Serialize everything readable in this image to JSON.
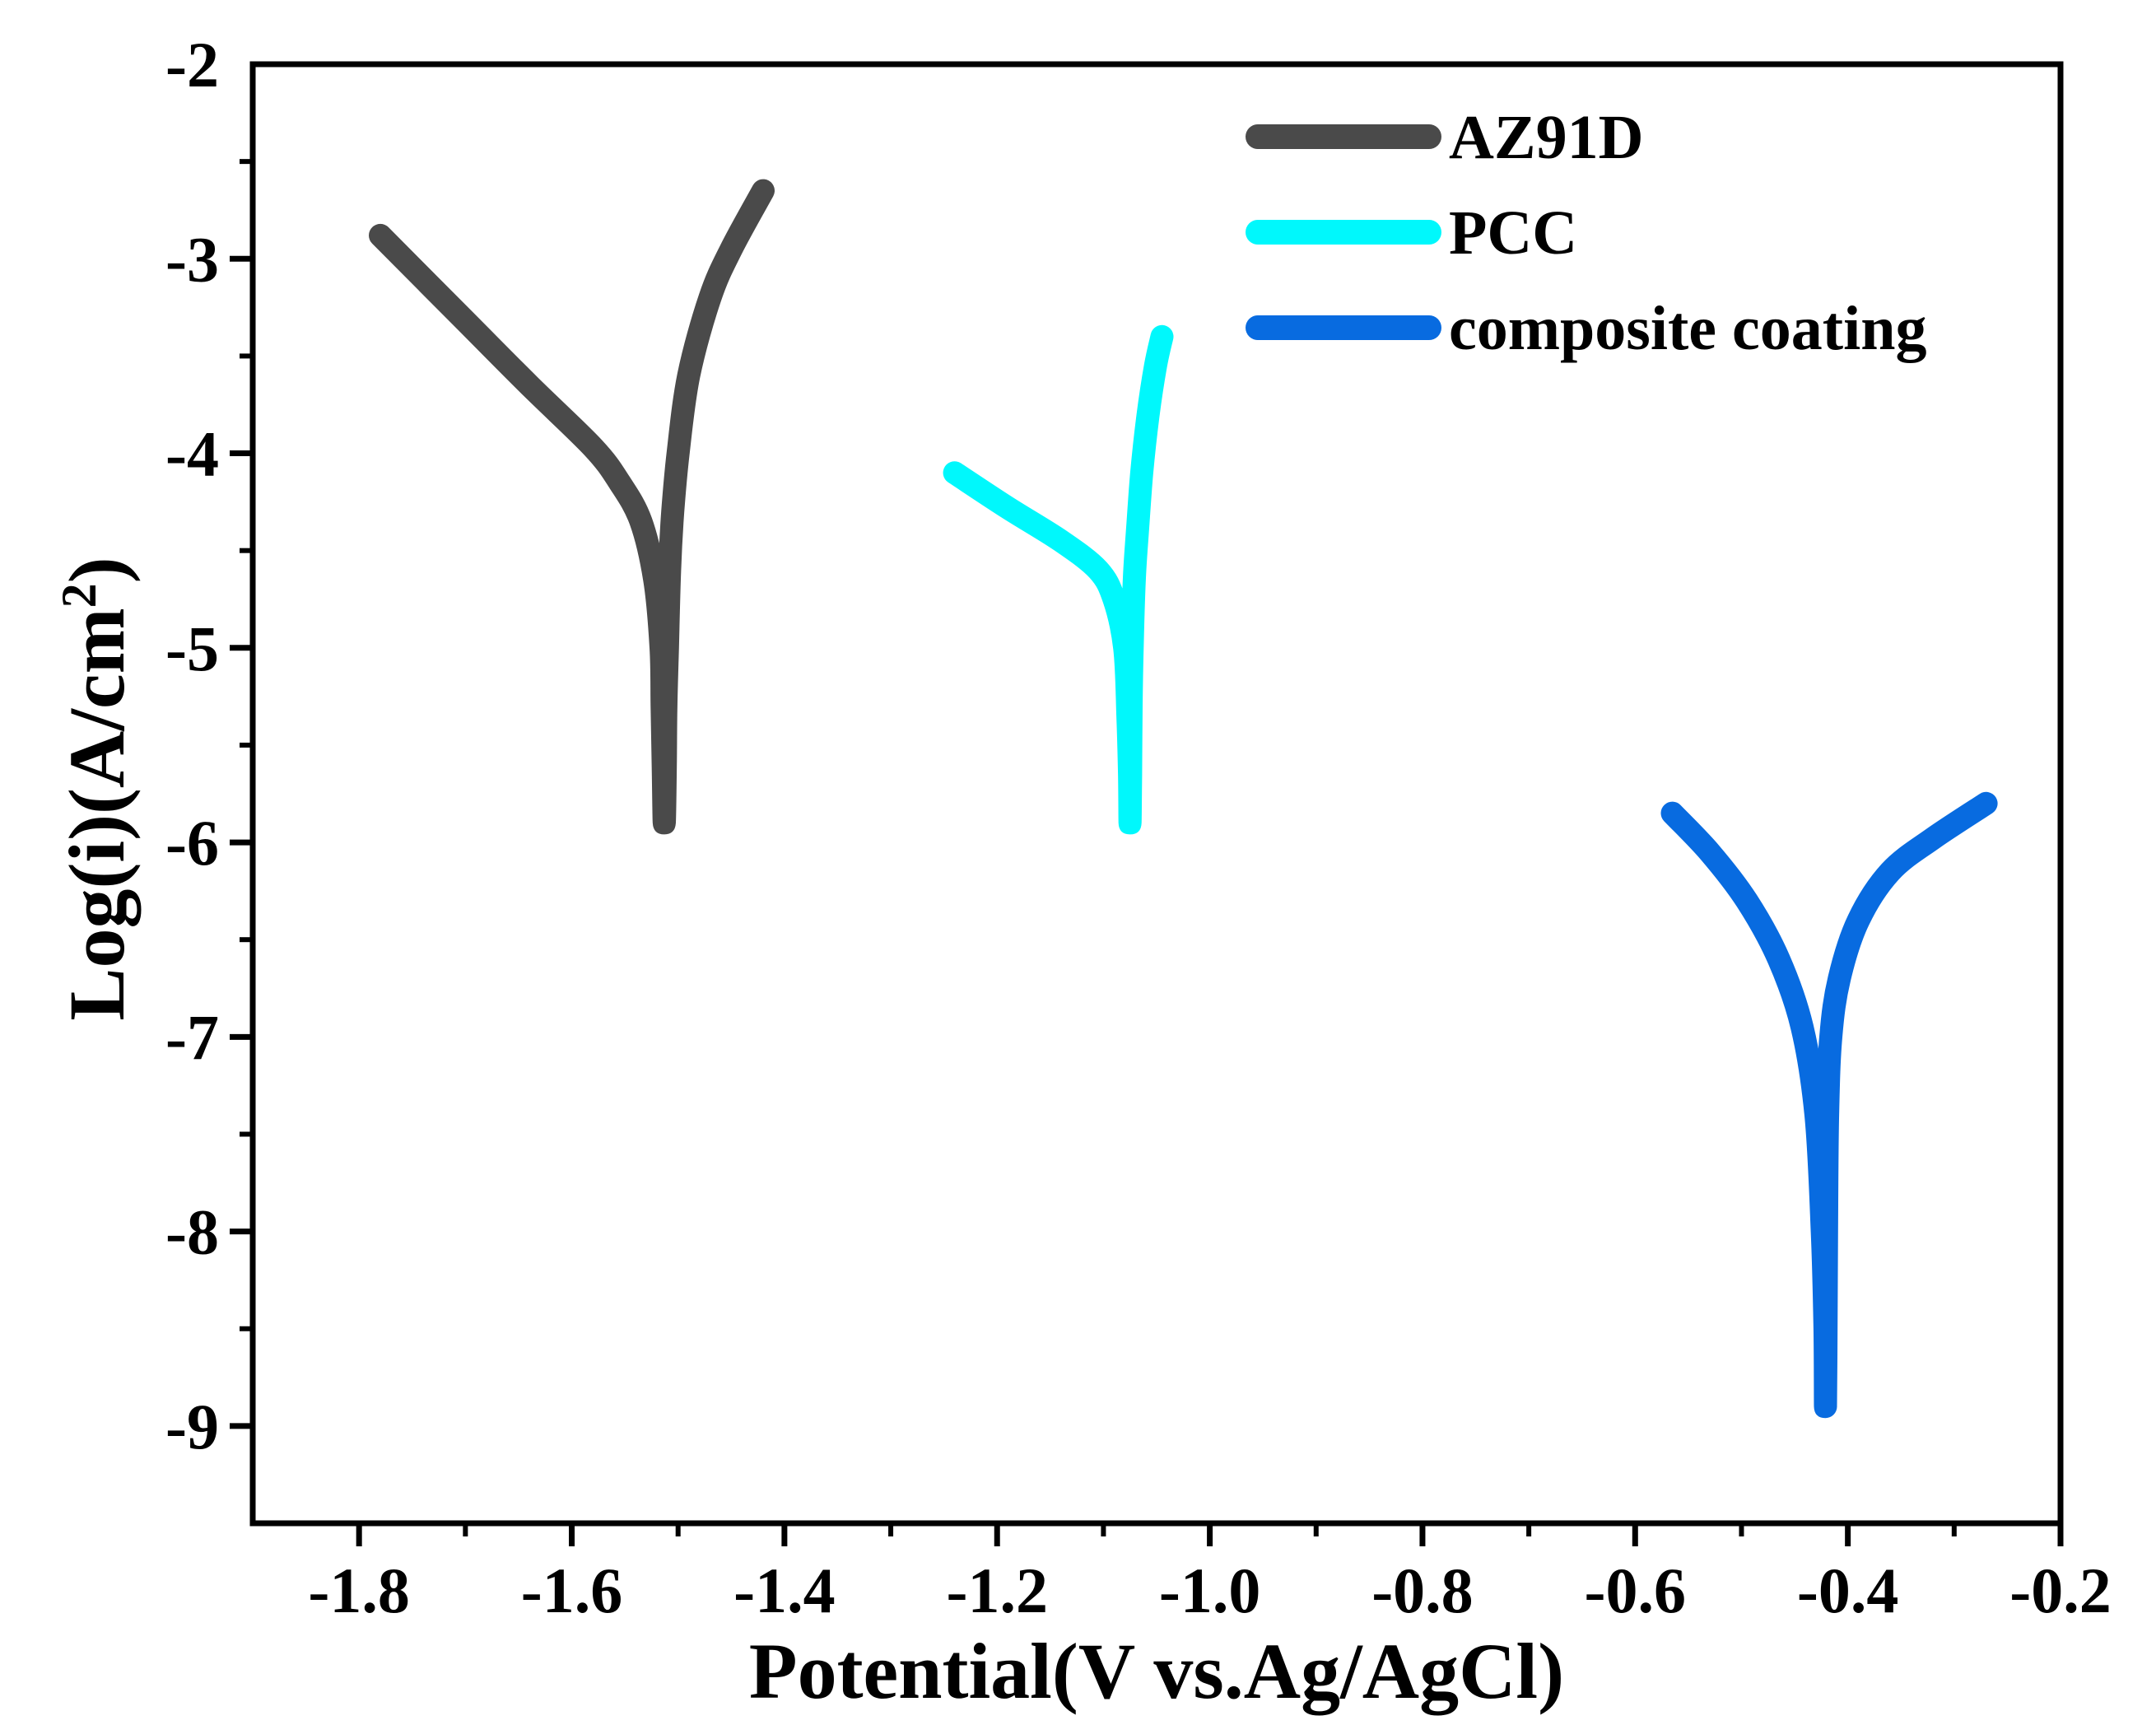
{
  "chart_data": {
    "type": "line",
    "title": "",
    "xlabel": "Potential(V vs.Ag/AgCl)",
    "ylabel_main": "Log(i)(A/cm",
    "ylabel_sup": "2",
    "ylabel_close": ")",
    "xlim": [
      -1.9,
      -0.2
    ],
    "ylim": [
      -9.5,
      -2
    ],
    "x_ticks": [
      -1.8,
      -1.6,
      -1.4,
      -1.2,
      -1.0,
      -0.8,
      -0.6,
      -0.4,
      -0.2
    ],
    "x_tick_labels": [
      "-1.8",
      "-1.6",
      "-1.4",
      "-1.2",
      "-1.0",
      "-0.8",
      "-0.6",
      "-0.4",
      "-0.2"
    ],
    "y_ticks": [
      -2,
      -3,
      -4,
      -5,
      -6,
      -7,
      -8,
      -9
    ],
    "y_tick_labels": [
      "-2",
      "-3",
      "-4",
      "-5",
      "-6",
      "-7",
      "-8",
      "-9"
    ],
    "legend_position": "top-right",
    "series": [
      {
        "name": "AZ91D",
        "color": "#4a4a4a",
        "x": [
          -1.78,
          -1.7,
          -1.64,
          -1.58,
          -1.555,
          -1.535,
          -1.522,
          -1.516,
          -1.515,
          -1.514,
          -1.513,
          -1.512,
          -1.5115,
          -1.51,
          -1.508,
          -1.505,
          -1.5,
          -1.49,
          -1.47,
          -1.45,
          -1.42
        ],
        "y": [
          -2.88,
          -3.32,
          -3.65,
          -3.97,
          -4.15,
          -4.35,
          -4.65,
          -5.0,
          -5.3,
          -5.6,
          -5.9,
          -5.6,
          -5.3,
          -5.0,
          -4.6,
          -4.3,
          -4.0,
          -3.6,
          -3.2,
          -2.95,
          -2.65
        ]
      },
      {
        "name": "PCC",
        "color": "#00f8fc",
        "x": [
          -1.24,
          -1.19,
          -1.14,
          -1.105,
          -1.09,
          -1.08,
          -1.077,
          -1.0755,
          -1.075,
          -1.0745,
          -1.074,
          -1.073,
          -1.071,
          -1.068,
          -1.064,
          -1.058,
          -1.051,
          -1.045
        ],
        "y": [
          -4.1,
          -4.28,
          -4.45,
          -4.6,
          -4.75,
          -5.0,
          -5.35,
          -5.65,
          -5.9,
          -5.65,
          -5.3,
          -5.0,
          -4.65,
          -4.4,
          -4.1,
          -3.8,
          -3.55,
          -3.4
        ]
      },
      {
        "name": "composite coating",
        "color": "#086be0",
        "x": [
          -0.565,
          -0.53,
          -0.495,
          -0.465,
          -0.443,
          -0.43,
          -0.424,
          -0.4215,
          -0.421,
          -0.4205,
          -0.42,
          -0.419,
          -0.416,
          -0.408,
          -0.39,
          -0.36,
          -0.32,
          -0.27
        ],
        "y": [
          -5.85,
          -6.05,
          -6.3,
          -6.6,
          -6.95,
          -7.4,
          -8.0,
          -8.5,
          -8.9,
          -8.5,
          -8.0,
          -7.4,
          -7.0,
          -6.7,
          -6.4,
          -6.15,
          -5.98,
          -5.8
        ]
      }
    ]
  }
}
